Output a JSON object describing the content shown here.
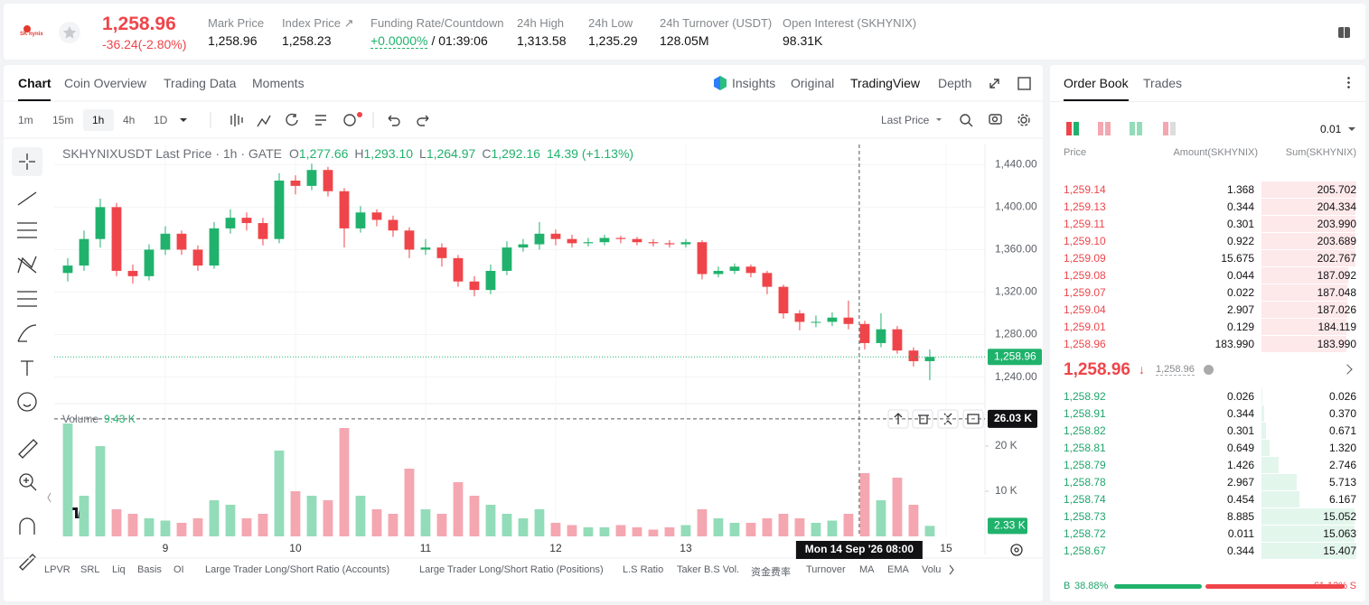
{
  "header": {
    "logo": "SK hynix",
    "last_price": "1,258.96",
    "change": "-36.24(-2.80%)",
    "stats": [
      {
        "label": "Mark Price",
        "value": "1,258.96"
      },
      {
        "label": "Index Price ↗",
        "value": "1,258.23"
      },
      {
        "label": "Funding Rate/Countdown",
        "value": "+0.0000%",
        "extra": "/ 01:39:06"
      },
      {
        "label": "24h High",
        "value": "1,313.58"
      },
      {
        "label": "24h Low",
        "value": "1,235.29"
      },
      {
        "label": "24h Turnover (USDT)",
        "value": "128.05M"
      },
      {
        "label": "Open Interest (SKHYNIX)",
        "value": "98.31K"
      }
    ]
  },
  "tabs": [
    "Chart",
    "Coin Overview",
    "Trading Data",
    "Moments"
  ],
  "view_tabs": [
    "Insights",
    "Original",
    "TradingView",
    "Depth"
  ],
  "intervals": [
    "1m",
    "15m",
    "1h",
    "4h",
    "1D"
  ],
  "price_type": "Last Price",
  "chart_data": {
    "type": "candlestick",
    "title": "SKHYNIXUSDT Last Price · 1h · GATE",
    "legend": [
      {
        "key": "O",
        "value": "1,277.66"
      },
      {
        "key": "H",
        "value": "1,293.10"
      },
      {
        "key": "L",
        "value": "1,264.97"
      },
      {
        "key": "C",
        "value": "1,292.16"
      }
    ],
    "legend_change": "14.39 (+1.13%)",
    "x": [
      8.25,
      8.375,
      8.5,
      8.625,
      8.75,
      8.875,
      9,
      9.125,
      9.25,
      9.375,
      9.5,
      9.625,
      9.75,
      9.875,
      10,
      10.125,
      10.25,
      10.375,
      10.5,
      10.625,
      10.75,
      10.875,
      11,
      11.125,
      11.25,
      11.375,
      11.5,
      11.625,
      11.75,
      11.875,
      12,
      12.125,
      12.25,
      12.375,
      12.5,
      12.625,
      12.75,
      12.875,
      13,
      13.125,
      13.25,
      13.375,
      13.5,
      13.625,
      13.75,
      13.875,
      14,
      14.125,
      14.25,
      14.375,
      14.5,
      14.625,
      14.75,
      14.875
    ],
    "open": [
      1338,
      1345,
      1370,
      1400,
      1340,
      1335,
      1360,
      1375,
      1360,
      1345,
      1380,
      1390,
      1385,
      1370,
      1425,
      1420,
      1435,
      1415,
      1380,
      1395,
      1388,
      1378,
      1360,
      1362,
      1352,
      1330,
      1322,
      1340,
      1362,
      1365,
      1375,
      1370,
      1366,
      1367,
      1371,
      1370,
      1367,
      1366,
      1365,
      1367,
      1337,
      1340,
      1344,
      1338,
      1325,
      1300,
      1292,
      1292,
      1296,
      1290,
      1272,
      1285,
      1265,
      1255
    ],
    "high": [
      1352,
      1378,
      1408,
      1404,
      1346,
      1365,
      1382,
      1378,
      1364,
      1386,
      1398,
      1395,
      1390,
      1432,
      1430,
      1441,
      1438,
      1418,
      1401,
      1398,
      1392,
      1381,
      1370,
      1366,
      1355,
      1335,
      1346,
      1368,
      1370,
      1386,
      1379,
      1374,
      1371,
      1374,
      1373,
      1372,
      1370,
      1369,
      1370,
      1369,
      1344,
      1347,
      1346,
      1340,
      1327,
      1303,
      1298,
      1301,
      1312,
      1293,
      1300,
      1288,
      1268,
      1266
    ],
    "low": [
      1330,
      1340,
      1362,
      1335,
      1328,
      1331,
      1355,
      1355,
      1340,
      1342,
      1375,
      1378,
      1364,
      1366,
      1412,
      1416,
      1410,
      1362,
      1376,
      1382,
      1372,
      1352,
      1355,
      1344,
      1325,
      1316,
      1318,
      1336,
      1358,
      1360,
      1364,
      1362,
      1363,
      1364,
      1366,
      1364,
      1363,
      1362,
      1362,
      1332,
      1334,
      1337,
      1334,
      1318,
      1295,
      1284,
      1287,
      1288,
      1285,
      1266,
      1268,
      1262,
      1250,
      1237
    ],
    "close": [
      1345,
      1370,
      1400,
      1340,
      1335,
      1360,
      1375,
      1360,
      1345,
      1380,
      1390,
      1385,
      1370,
      1425,
      1420,
      1435,
      1415,
      1380,
      1395,
      1388,
      1378,
      1360,
      1362,
      1352,
      1330,
      1322,
      1340,
      1362,
      1365,
      1375,
      1370,
      1366,
      1367,
      1371,
      1370,
      1367,
      1366,
      1365,
      1367,
      1337,
      1340,
      1344,
      1338,
      1325,
      1300,
      1292,
      1292,
      1296,
      1290,
      1272,
      1285,
      1265,
      1255,
      1258.96
    ],
    "volume": [
      25000,
      9000,
      20000,
      6000,
      5000,
      4000,
      3500,
      3000,
      4000,
      8000,
      7000,
      4000,
      5000,
      19000,
      10000,
      9000,
      8000,
      24000,
      9000,
      6000,
      5000,
      15000,
      6000,
      5000,
      12000,
      9000,
      7000,
      5000,
      4000,
      6000,
      3000,
      2500,
      2000,
      2000,
      2500,
      2000,
      1500,
      2000,
      2500,
      6000,
      4000,
      3000,
      3000,
      4000,
      5000,
      4000,
      3000,
      3500,
      5000,
      14000,
      8000,
      13000,
      7000,
      2330
    ],
    "volume_label": "Volume",
    "volume_legend": "9.43 K",
    "volume_last": "2.33 K",
    "up_color": "#20b26c",
    "down_color": "#ef454a",
    "volume_up_color": "#93dcb9",
    "volume_down_color": "#f4a7b0",
    "xlim": [
      8.146,
      15.299
    ],
    "xticks": [
      9,
      10,
      11,
      12,
      13,
      15
    ],
    "ylim": [
      1215,
      1459
    ],
    "yticks": [
      {
        "value": 1240,
        "label": "1,240.00"
      },
      {
        "value": 1280,
        "label": "1,280.00"
      },
      {
        "value": 1320,
        "label": "1,320.00"
      },
      {
        "value": 1360,
        "label": "1,360.00"
      },
      {
        "value": 1400,
        "label": "1,400.00"
      },
      {
        "value": 1440,
        "label": "1,440.00"
      }
    ],
    "volume_ylim": [
      0,
      28800
    ],
    "volume_yticks": [
      {
        "value": 10000,
        "label": "10 K"
      },
      {
        "value": 20000,
        "label": "20 K"
      }
    ],
    "grid": true,
    "last_price": {
      "value": 1258.96,
      "label": "1,258.96"
    },
    "crosshair": {
      "x": 14.333,
      "x_label": "Mon 14 Sep '26   08:00",
      "y": 26030,
      "y_label": "26.03 K"
    }
  },
  "indicators": [
    "LPVR",
    "SRL",
    "Liq",
    "Basis",
    "OI",
    "Large Trader Long/Short Ratio (Accounts)",
    "Large Trader Long/Short Ratio (Positions)",
    "L.S Ratio",
    "Taker B.S Vol.",
    "资金费率",
    "Turnover",
    "MA",
    "EMA",
    "Volu"
  ],
  "order_book": {
    "tabs": [
      "Order Book",
      "Trades"
    ],
    "precision": "0.01",
    "columns": [
      "Price",
      "Amount(SKHYNIX)",
      "Sum(SKHYNIX)"
    ],
    "asks": {
      "price": [
        "1,259.14",
        "1,259.13",
        "1,259.11",
        "1,259.10",
        "1,259.09",
        "1,259.08",
        "1,259.07",
        "1,259.04",
        "1,259.01",
        "1,258.96"
      ],
      "amount": [
        "1.368",
        "0.344",
        "0.301",
        "0.922",
        "15.675",
        "0.044",
        "0.022",
        "2.907",
        "0.129",
        "183.990"
      ],
      "sum": [
        205.702,
        204.334,
        203.99,
        203.689,
        202.767,
        187.092,
        187.048,
        187.026,
        184.119,
        183.99
      ],
      "sum_labels": [
        "205.702",
        "204.334",
        "203.990",
        "203.689",
        "202.767",
        "187.092",
        "187.048",
        "187.026",
        "184.119",
        "183.990"
      ]
    },
    "mid_price": "1,258.96",
    "mid_arrow": "↓",
    "mark_price": "1,258.96",
    "bids": {
      "price": [
        "1,258.92",
        "1,258.91",
        "1,258.82",
        "1,258.81",
        "1,258.79",
        "1,258.78",
        "1,258.74",
        "1,258.73",
        "1,258.72",
        "1,258.67"
      ],
      "amount": [
        "0.026",
        "0.344",
        "0.301",
        "0.649",
        "1.426",
        "2.967",
        "0.454",
        "8.885",
        "0.011",
        "0.344"
      ],
      "sum": [
        0.026,
        0.37,
        0.671,
        1.32,
        2.746,
        5.713,
        6.167,
        15.052,
        15.063,
        15.407
      ],
      "sum_labels": [
        "0.026",
        "0.370",
        "0.671",
        "1.320",
        "2.746",
        "5.713",
        "6.167",
        "15.052",
        "15.063",
        "15.407"
      ]
    },
    "buy": {
      "key": "B",
      "value": 38.88,
      "label": "38.88%"
    },
    "sell": {
      "key": "S",
      "value": 61.12,
      "label": "61.12%"
    }
  }
}
